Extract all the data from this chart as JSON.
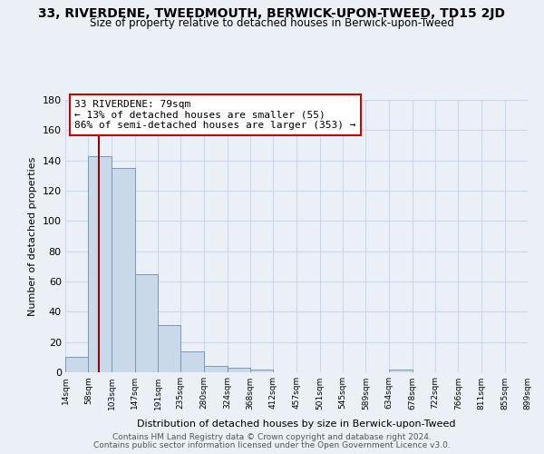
{
  "title": "33, RIVERDENE, TWEEDMOUTH, BERWICK-UPON-TWEED, TD15 2JD",
  "subtitle": "Size of property relative to detached houses in Berwick-upon-Tweed",
  "xlabel": "Distribution of detached houses by size in Berwick-upon-Tweed",
  "ylabel": "Number of detached properties",
  "bar_heights": [
    10,
    143,
    135,
    65,
    31,
    14,
    4,
    3,
    2,
    0,
    0,
    0,
    0,
    0,
    2,
    0,
    0,
    0,
    0,
    0
  ],
  "bar_left_edges": [
    14,
    58,
    103,
    147,
    191,
    235,
    280,
    324,
    368,
    412,
    457,
    501,
    545,
    589,
    634,
    678,
    722,
    766,
    811,
    855
  ],
  "bin_width": 44,
  "tick_labels": [
    "14sqm",
    "58sqm",
    "103sqm",
    "147sqm",
    "191sqm",
    "235sqm",
    "280sqm",
    "324sqm",
    "368sqm",
    "412sqm",
    "457sqm",
    "501sqm",
    "545sqm",
    "589sqm",
    "634sqm",
    "678sqm",
    "722sqm",
    "766sqm",
    "811sqm",
    "855sqm",
    "899sqm"
  ],
  "bar_color": "#c9d9ea",
  "bar_edge_color": "#7799bb",
  "grid_color": "#c8d8e8",
  "background_color": "#eaf0f6",
  "plot_bg_color": "#eaf0f6",
  "vline_x": 79,
  "vline_color": "#990000",
  "annotation_line1": "33 RIVERDENE: 79sqm",
  "annotation_line2": "← 13% of detached houses are smaller (55)",
  "annotation_line3": "86% of semi-detached houses are larger (353) →",
  "annotation_box_color": "#ffffff",
  "annotation_box_edge": "#cc0000",
  "ylim": [
    0,
    180
  ],
  "yticks": [
    0,
    20,
    40,
    60,
    80,
    100,
    120,
    140,
    160,
    180
  ],
  "footer1": "Contains HM Land Registry data © Crown copyright and database right 2024.",
  "footer2": "Contains public sector information licensed under the Open Government Licence v3.0."
}
